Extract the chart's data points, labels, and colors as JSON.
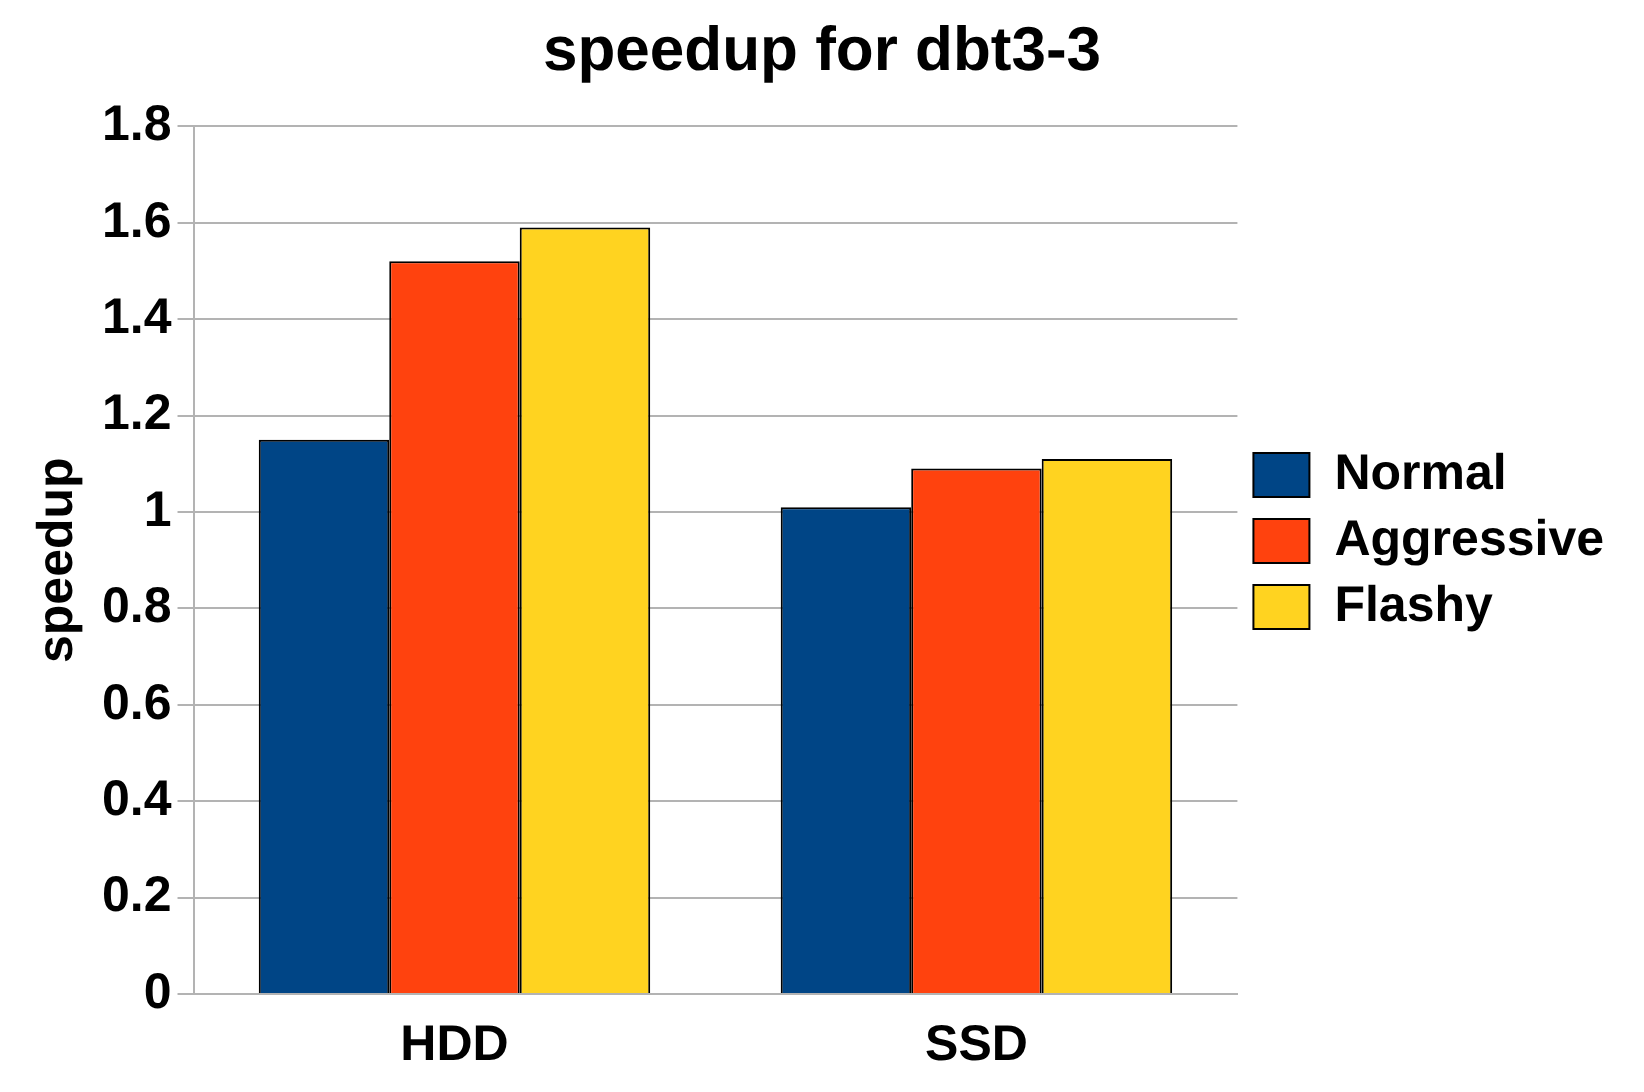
{
  "chart_data": {
    "type": "bar",
    "title": "speedup for dbt3-3",
    "ylabel": "speedup",
    "categories": [
      "HDD",
      "SSD"
    ],
    "series": [
      {
        "name": "Normal",
        "color": "#004586",
        "values": [
          1.15,
          1.01
        ]
      },
      {
        "name": "Aggressive",
        "color": "#ff420e",
        "values": [
          1.52,
          1.09
        ]
      },
      {
        "name": "Flashy",
        "color": "#ffd320",
        "values": [
          1.59,
          1.11
        ]
      }
    ],
    "ylim": [
      0,
      1.8
    ],
    "yticks": [
      0,
      0.2,
      0.4,
      0.6,
      0.8,
      1,
      1.2,
      1.4,
      1.6,
      1.8
    ],
    "grid": "y",
    "legend": "right"
  }
}
